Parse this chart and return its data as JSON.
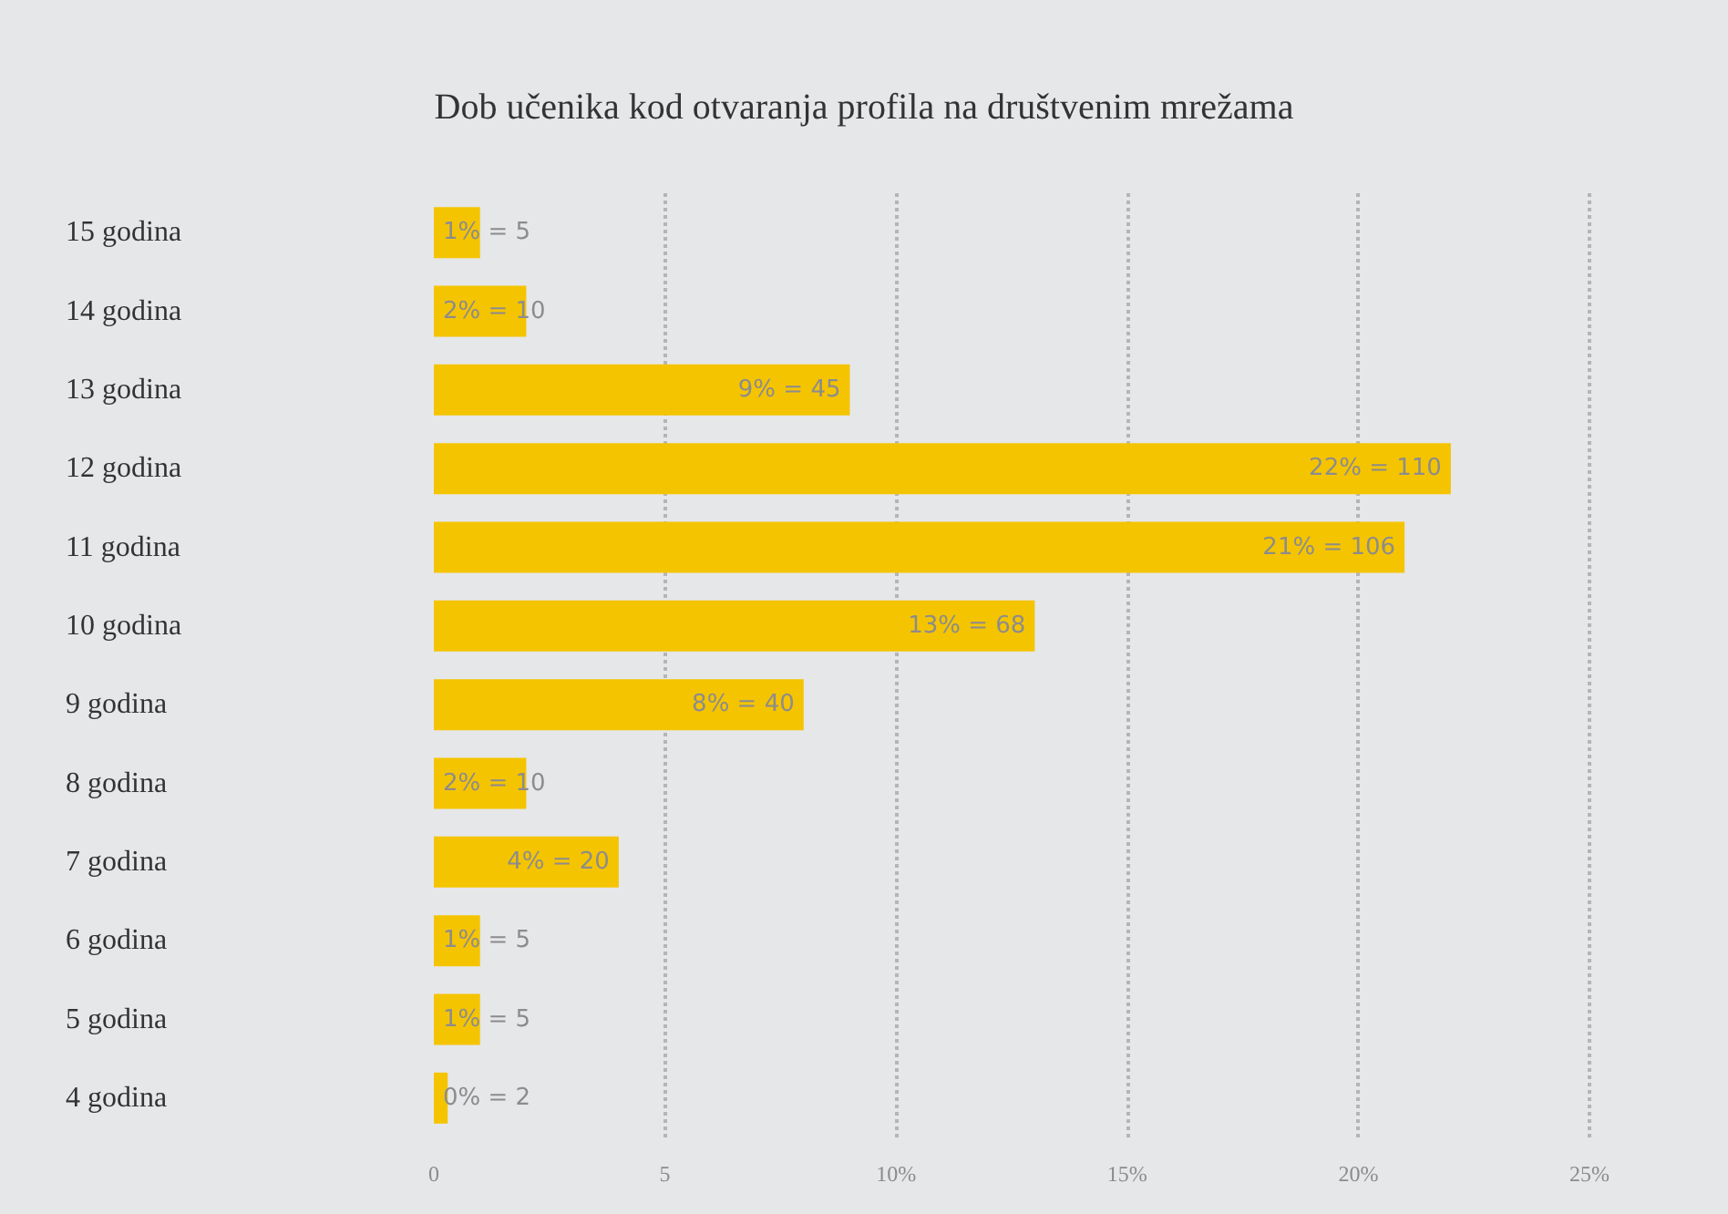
{
  "chart_data": {
    "type": "bar",
    "orientation": "horizontal",
    "title": "Dob učenika kod otvaranja profila na društvenim mrežama",
    "categories": [
      "15 godina",
      "14 godina",
      "13 godina",
      "12 godina",
      "11 godina",
      "10 godina",
      "9 godina",
      "8 godina",
      "7 godina",
      "6 godina",
      "5 godina",
      "4 godina"
    ],
    "values": [
      1,
      2,
      9,
      22,
      21,
      13,
      8,
      2,
      4,
      1,
      1,
      0.3
    ],
    "value_labels": [
      "1% = 5",
      "2% = 10",
      "9% = 45",
      "22% = 110",
      "21% = 106",
      "13% = 68",
      "8% = 40",
      "2% = 10",
      "4% = 20",
      "1% = 5",
      "1% = 5",
      "0% = 2"
    ],
    "color": "#f5c400",
    "xlim": [
      0,
      25
    ],
    "xticks": [
      0,
      5,
      {
        "value": 10,
        "label": "10%"
      },
      {
        "value": 15,
        "label": "15%"
      },
      {
        "value": 20,
        "label": "20%"
      },
      {
        "value": 25,
        "label": "25%"
      }
    ],
    "grid": "x"
  }
}
